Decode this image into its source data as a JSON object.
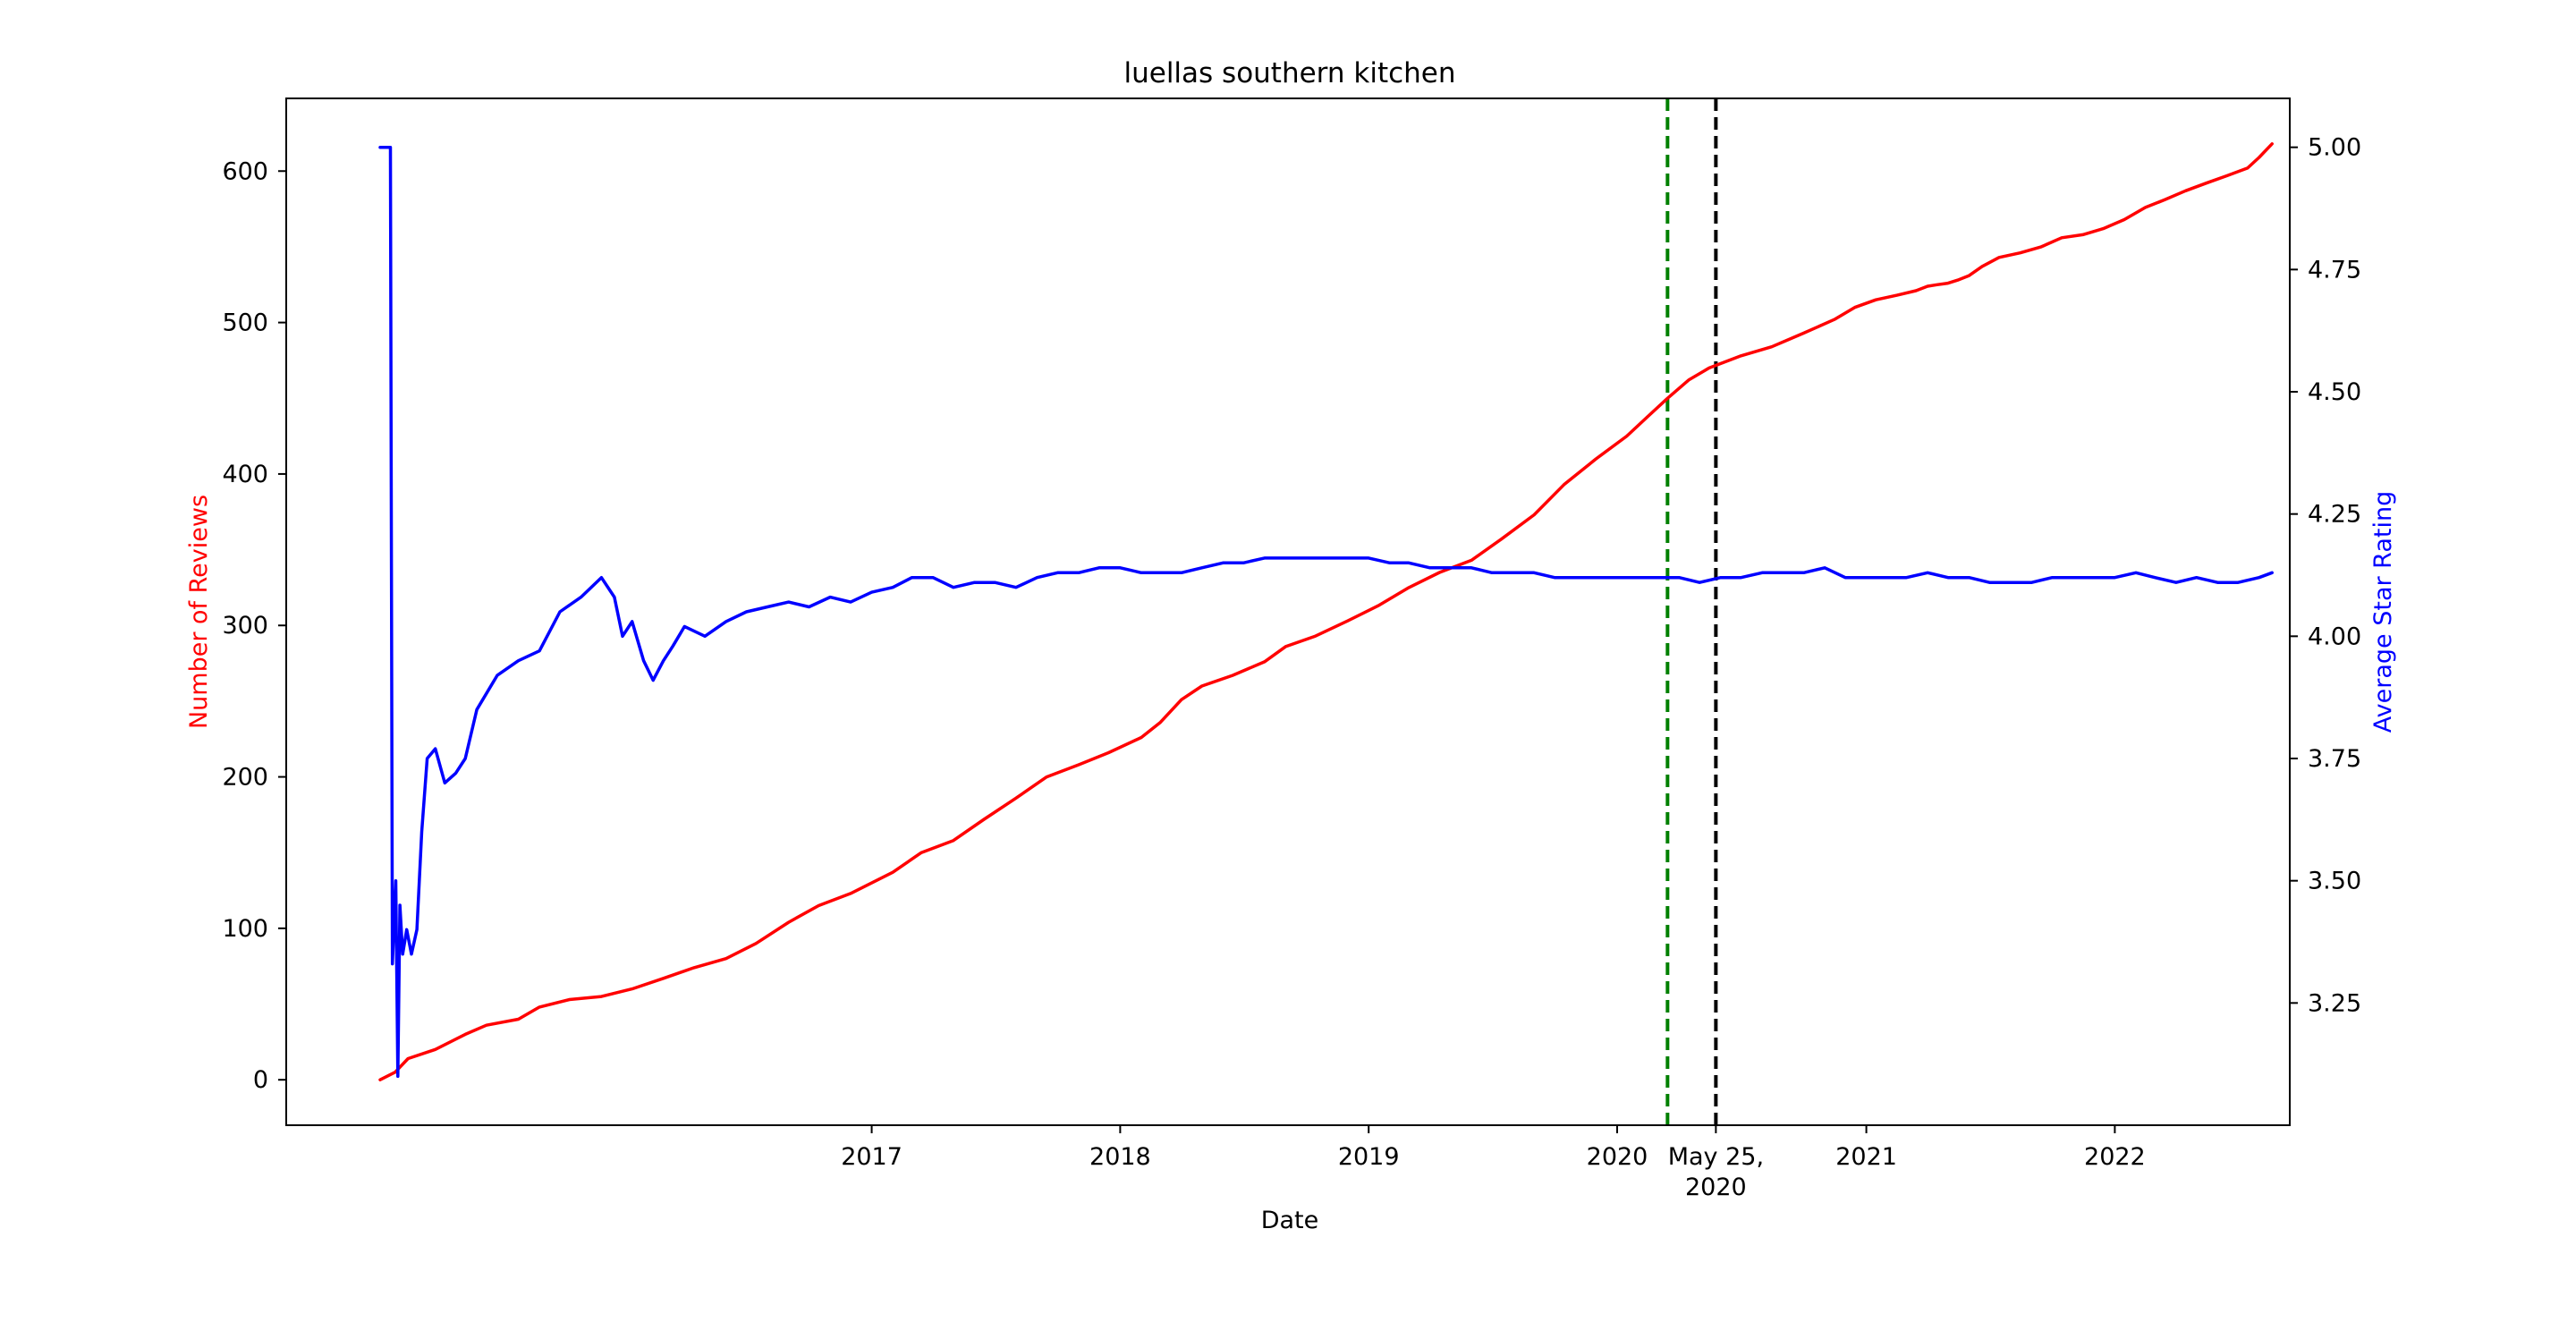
{
  "chart_data": {
    "type": "line",
    "title": "luellas southern kitchen",
    "xlabel": "Date",
    "ylabel_left": "Number of Reviews",
    "ylabel_right": "Average Star Rating",
    "colors": {
      "reviews": "#ff0000",
      "rating": "#0000ff",
      "vline_green": "#008000",
      "vline_black": "#000000",
      "axes": "#000000"
    },
    "x_range": [
      "2014-08-25",
      "2022-09-15"
    ],
    "y_left_range": [
      -30,
      648
    ],
    "y_right_range": [
      3.0,
      5.1
    ],
    "grid": false,
    "x_ticks": [
      {
        "date": "2017-01-01",
        "label": "2017"
      },
      {
        "date": "2018-01-01",
        "label": "2018"
      },
      {
        "date": "2019-01-01",
        "label": "2019"
      },
      {
        "date": "2020-01-01",
        "label": "2020"
      },
      {
        "date": "2020-05-25",
        "label": "May 25,",
        "label2": "2020"
      },
      {
        "date": "2021-01-01",
        "label": "2021"
      },
      {
        "date": "2022-01-01",
        "label": "2022"
      }
    ],
    "y_left_ticks": [
      0,
      100,
      200,
      300,
      400,
      500,
      600
    ],
    "y_right_ticks": [
      "3.25",
      "3.50",
      "3.75",
      "4.00",
      "4.25",
      "4.50",
      "4.75",
      "5.00"
    ],
    "vlines": [
      {
        "date": "2020-03-15",
        "color": "#008000",
        "style": "dashed"
      },
      {
        "date": "2020-05-25",
        "color": "#000000",
        "style": "dashed"
      }
    ],
    "series": [
      {
        "key": "reviews",
        "axis": "left",
        "points": [
          [
            "2015-01-10",
            0
          ],
          [
            "2015-02-01",
            5
          ],
          [
            "2015-02-20",
            14
          ],
          [
            "2015-04-01",
            20
          ],
          [
            "2015-05-15",
            30
          ],
          [
            "2015-06-15",
            36
          ],
          [
            "2015-08-01",
            40
          ],
          [
            "2015-09-01",
            48
          ],
          [
            "2015-10-15",
            53
          ],
          [
            "2015-12-01",
            55
          ],
          [
            "2016-01-15",
            60
          ],
          [
            "2016-03-01",
            67
          ],
          [
            "2016-04-15",
            74
          ],
          [
            "2016-06-01",
            80
          ],
          [
            "2016-07-15",
            90
          ],
          [
            "2016-09-01",
            104
          ],
          [
            "2016-10-15",
            115
          ],
          [
            "2016-12-01",
            123
          ],
          [
            "2017-02-01",
            137
          ],
          [
            "2017-03-15",
            150
          ],
          [
            "2017-05-01",
            158
          ],
          [
            "2017-06-15",
            172
          ],
          [
            "2017-08-01",
            186
          ],
          [
            "2017-09-15",
            200
          ],
          [
            "2017-11-01",
            208
          ],
          [
            "2017-12-15",
            216
          ],
          [
            "2018-02-01",
            226
          ],
          [
            "2018-03-01",
            236
          ],
          [
            "2018-04-01",
            251
          ],
          [
            "2018-05-01",
            260
          ],
          [
            "2018-06-15",
            267
          ],
          [
            "2018-08-01",
            276
          ],
          [
            "2018-09-01",
            286
          ],
          [
            "2018-10-15",
            293
          ],
          [
            "2018-12-01",
            303
          ],
          [
            "2019-01-15",
            313
          ],
          [
            "2019-03-01",
            325
          ],
          [
            "2019-04-15",
            335
          ],
          [
            "2019-06-01",
            343
          ],
          [
            "2019-07-15",
            357
          ],
          [
            "2019-09-01",
            373
          ],
          [
            "2019-10-15",
            393
          ],
          [
            "2019-12-01",
            410
          ],
          [
            "2020-01-15",
            425
          ],
          [
            "2020-02-15",
            438
          ],
          [
            "2020-03-15",
            450
          ],
          [
            "2020-04-15",
            462
          ],
          [
            "2020-05-15",
            470
          ],
          [
            "2020-07-01",
            478
          ],
          [
            "2020-08-15",
            484
          ],
          [
            "2020-10-01",
            493
          ],
          [
            "2020-11-15",
            502
          ],
          [
            "2020-12-15",
            510
          ],
          [
            "2021-01-15",
            515
          ],
          [
            "2021-02-15",
            518
          ],
          [
            "2021-03-15",
            521
          ],
          [
            "2021-04-01",
            524
          ],
          [
            "2021-04-15",
            525
          ],
          [
            "2021-05-01",
            526
          ],
          [
            "2021-05-15",
            528
          ],
          [
            "2021-06-01",
            531
          ],
          [
            "2021-06-20",
            537
          ],
          [
            "2021-07-15",
            543
          ],
          [
            "2021-08-15",
            546
          ],
          [
            "2021-09-15",
            550
          ],
          [
            "2021-10-15",
            556
          ],
          [
            "2021-11-15",
            558
          ],
          [
            "2021-12-15",
            562
          ],
          [
            "2022-01-15",
            568
          ],
          [
            "2022-02-15",
            576
          ],
          [
            "2022-03-15",
            581
          ],
          [
            "2022-04-15",
            587
          ],
          [
            "2022-05-15",
            592
          ],
          [
            "2022-06-15",
            597
          ],
          [
            "2022-07-15",
            602
          ],
          [
            "2022-08-01",
            609
          ],
          [
            "2022-08-20",
            618
          ]
        ]
      },
      {
        "key": "rating",
        "axis": "right",
        "points": [
          [
            "2015-01-10",
            5.0
          ],
          [
            "2015-01-25",
            5.0
          ],
          [
            "2015-01-28",
            3.33
          ],
          [
            "2015-02-02",
            3.5
          ],
          [
            "2015-02-05",
            3.1
          ],
          [
            "2015-02-08",
            3.45
          ],
          [
            "2015-02-12",
            3.35
          ],
          [
            "2015-02-18",
            3.4
          ],
          [
            "2015-02-25",
            3.35
          ],
          [
            "2015-03-05",
            3.4
          ],
          [
            "2015-03-12",
            3.6
          ],
          [
            "2015-03-20",
            3.75
          ],
          [
            "2015-04-01",
            3.77
          ],
          [
            "2015-04-15",
            3.7
          ],
          [
            "2015-05-01",
            3.72
          ],
          [
            "2015-05-15",
            3.75
          ],
          [
            "2015-06-01",
            3.85
          ],
          [
            "2015-07-01",
            3.92
          ],
          [
            "2015-08-01",
            3.95
          ],
          [
            "2015-09-01",
            3.97
          ],
          [
            "2015-10-01",
            4.05
          ],
          [
            "2015-11-01",
            4.08
          ],
          [
            "2015-12-01",
            4.12
          ],
          [
            "2015-12-20",
            4.08
          ],
          [
            "2016-01-01",
            4.0
          ],
          [
            "2016-01-15",
            4.03
          ],
          [
            "2016-02-01",
            3.95
          ],
          [
            "2016-02-15",
            3.91
          ],
          [
            "2016-03-01",
            3.95
          ],
          [
            "2016-03-15",
            3.98
          ],
          [
            "2016-04-01",
            4.02
          ],
          [
            "2016-05-01",
            4.0
          ],
          [
            "2016-06-01",
            4.03
          ],
          [
            "2016-07-01",
            4.05
          ],
          [
            "2016-08-01",
            4.06
          ],
          [
            "2016-09-01",
            4.07
          ],
          [
            "2016-10-01",
            4.06
          ],
          [
            "2016-11-01",
            4.08
          ],
          [
            "2016-12-01",
            4.07
          ],
          [
            "2017-01-01",
            4.09
          ],
          [
            "2017-02-01",
            4.1
          ],
          [
            "2017-03-01",
            4.12
          ],
          [
            "2017-04-01",
            4.12
          ],
          [
            "2017-05-01",
            4.1
          ],
          [
            "2017-06-01",
            4.11
          ],
          [
            "2017-07-01",
            4.11
          ],
          [
            "2017-08-01",
            4.1
          ],
          [
            "2017-09-01",
            4.12
          ],
          [
            "2017-10-01",
            4.13
          ],
          [
            "2017-11-01",
            4.13
          ],
          [
            "2017-12-01",
            4.14
          ],
          [
            "2018-01-01",
            4.14
          ],
          [
            "2018-02-01",
            4.13
          ],
          [
            "2018-03-01",
            4.13
          ],
          [
            "2018-04-01",
            4.13
          ],
          [
            "2018-05-01",
            4.14
          ],
          [
            "2018-06-01",
            4.15
          ],
          [
            "2018-07-01",
            4.15
          ],
          [
            "2018-08-01",
            4.16
          ],
          [
            "2018-09-01",
            4.16
          ],
          [
            "2018-10-01",
            4.16
          ],
          [
            "2018-11-01",
            4.16
          ],
          [
            "2018-12-01",
            4.16
          ],
          [
            "2019-01-01",
            4.16
          ],
          [
            "2019-02-01",
            4.15
          ],
          [
            "2019-03-01",
            4.15
          ],
          [
            "2019-04-01",
            4.14
          ],
          [
            "2019-05-01",
            4.14
          ],
          [
            "2019-06-01",
            4.14
          ],
          [
            "2019-07-01",
            4.13
          ],
          [
            "2019-08-01",
            4.13
          ],
          [
            "2019-09-01",
            4.13
          ],
          [
            "2019-10-01",
            4.12
          ],
          [
            "2019-11-01",
            4.12
          ],
          [
            "2019-12-01",
            4.12
          ],
          [
            "2020-01-01",
            4.12
          ],
          [
            "2020-02-01",
            4.12
          ],
          [
            "2020-03-01",
            4.12
          ],
          [
            "2020-04-01",
            4.12
          ],
          [
            "2020-05-01",
            4.11
          ],
          [
            "2020-06-01",
            4.12
          ],
          [
            "2020-07-01",
            4.12
          ],
          [
            "2020-08-01",
            4.13
          ],
          [
            "2020-09-01",
            4.13
          ],
          [
            "2020-10-01",
            4.13
          ],
          [
            "2020-11-01",
            4.14
          ],
          [
            "2020-12-01",
            4.12
          ],
          [
            "2021-01-01",
            4.12
          ],
          [
            "2021-02-01",
            4.12
          ],
          [
            "2021-03-01",
            4.12
          ],
          [
            "2021-04-01",
            4.13
          ],
          [
            "2021-05-01",
            4.12
          ],
          [
            "2021-06-01",
            4.12
          ],
          [
            "2021-07-01",
            4.11
          ],
          [
            "2021-08-01",
            4.11
          ],
          [
            "2021-09-01",
            4.11
          ],
          [
            "2021-10-01",
            4.12
          ],
          [
            "2021-11-01",
            4.12
          ],
          [
            "2021-12-01",
            4.12
          ],
          [
            "2022-01-01",
            4.12
          ],
          [
            "2022-02-01",
            4.13
          ],
          [
            "2022-03-01",
            4.12
          ],
          [
            "2022-04-01",
            4.11
          ],
          [
            "2022-05-01",
            4.12
          ],
          [
            "2022-06-01",
            4.11
          ],
          [
            "2022-07-01",
            4.11
          ],
          [
            "2022-08-01",
            4.12
          ],
          [
            "2022-08-20",
            4.13
          ]
        ]
      }
    ]
  }
}
